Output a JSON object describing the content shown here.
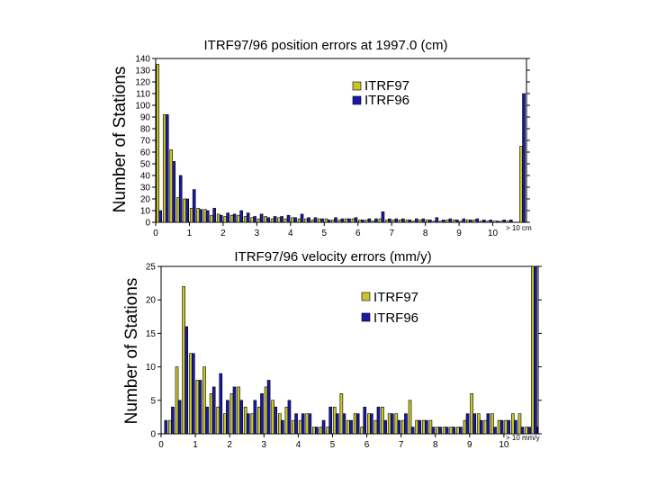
{
  "colors": {
    "itrf97": "#c8c62a",
    "itrf96": "#1a1aa8",
    "edge": "#000000"
  },
  "chart_data": [
    {
      "type": "bar",
      "title": "ITRF97/96 position errors at 1997.0 (cm)",
      "ylabel": "Number of Stations",
      "xlabel": "",
      "xlim": [
        0,
        11
      ],
      "ylim": [
        0,
        140
      ],
      "xticks": [
        "0",
        "1",
        "2",
        "3",
        "4",
        "5",
        "6",
        "7",
        "8",
        "9",
        "10"
      ],
      "yticks": [
        "0",
        "10",
        "20",
        "30",
        "40",
        "50",
        "60",
        "70",
        "80",
        "90",
        "100",
        "110",
        "120",
        "130",
        "140"
      ],
      "overflow_label": "> 10 cm",
      "legend": [
        "ITRF97",
        "ITRF96"
      ],
      "bin_width": 0.2,
      "series": [
        {
          "name": "ITRF97",
          "values": [
            135,
            92,
            62,
            21,
            20,
            12,
            12,
            11,
            6,
            7,
            5,
            6,
            6,
            5,
            4,
            3,
            5,
            3,
            4,
            3,
            4,
            3,
            3,
            2,
            3,
            3,
            2,
            2,
            3,
            3,
            2,
            2,
            1,
            3,
            2,
            2,
            2,
            2,
            1,
            2,
            2,
            1,
            1,
            2,
            2,
            1,
            2,
            2,
            1,
            1,
            1,
            1,
            1
          ]
        },
        {
          "name": "ITRF96",
          "values": [
            10,
            92,
            52,
            40,
            20,
            28,
            11,
            10,
            12,
            6,
            8,
            7,
            10,
            8,
            5,
            7,
            4,
            5,
            5,
            6,
            4,
            7,
            4,
            4,
            3,
            2,
            4,
            3,
            3,
            4,
            2,
            3,
            3,
            9,
            3,
            3,
            3,
            2,
            3,
            3,
            2,
            4,
            2,
            3,
            2,
            3,
            2,
            3,
            2,
            2,
            1,
            2,
            2
          ]
        }
      ],
      "overflow_values": {
        "ITRF97": 65,
        "ITRF96": 110
      }
    },
    {
      "type": "bar",
      "title": "ITRF97/96 velocity errors (mm/y)",
      "ylabel": "Number of Stations",
      "xlabel": "",
      "xlim": [
        0,
        11
      ],
      "ylim": [
        0,
        25
      ],
      "xticks": [
        "0",
        "1",
        "2",
        "3",
        "4",
        "5",
        "6",
        "7",
        "8",
        "9",
        "10"
      ],
      "yticks": [
        "0",
        "5",
        "10",
        "15",
        "20",
        "25"
      ],
      "overflow_label": "> 10 mm/y",
      "legend": [
        "ITRF97",
        "ITRF96"
      ],
      "bin_width": 0.2,
      "series": [
        {
          "name": "ITRF97",
          "values": [
            0,
            2,
            10,
            22,
            12,
            8,
            10,
            6,
            4,
            3,
            6,
            7,
            4,
            3,
            4,
            7,
            5,
            3,
            4,
            2,
            2,
            3,
            1,
            1,
            1,
            4,
            6,
            2,
            3,
            1,
            3,
            2,
            4,
            3,
            3,
            2,
            5,
            2,
            2,
            2,
            1,
            1,
            1,
            1,
            2,
            6,
            3,
            2,
            3,
            2,
            2,
            3,
            3,
            1,
            1
          ]
        },
        {
          "name": "ITRF96",
          "values": [
            2,
            4,
            5,
            16,
            12,
            8,
            4,
            7,
            9,
            5,
            7,
            5,
            3,
            5,
            6,
            8,
            4,
            2,
            5,
            3,
            3,
            3,
            1,
            2,
            4,
            3,
            3,
            2,
            3,
            4,
            3,
            4,
            2,
            3,
            2,
            3,
            1,
            2,
            2,
            1,
            1,
            1,
            1,
            1,
            3,
            3,
            2,
            3,
            1,
            2,
            2,
            2,
            1,
            1,
            1
          ]
        }
      ],
      "overflow_values": {
        "ITRF97": 25,
        "ITRF96": 25
      }
    }
  ]
}
